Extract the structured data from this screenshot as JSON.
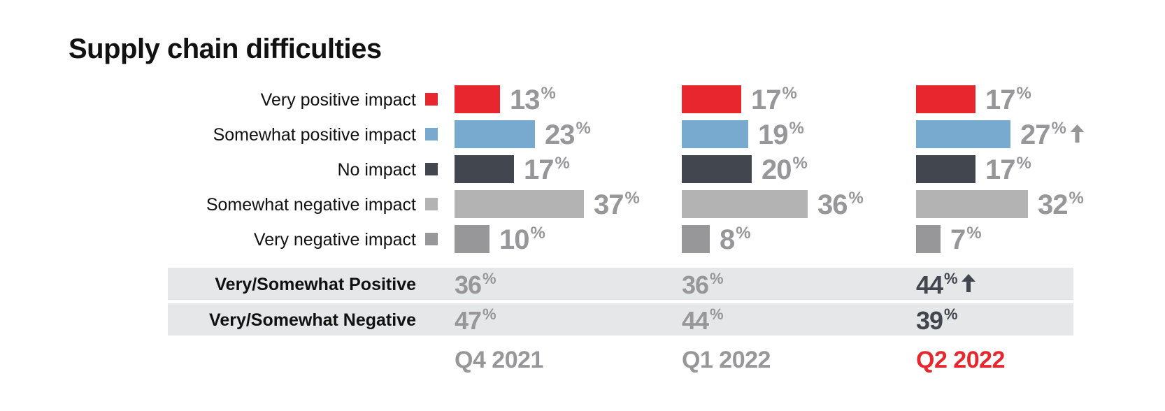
{
  "title": "Supply chain difficulties",
  "chart_data": {
    "type": "bar",
    "title": "Supply chain difficulties",
    "categories": [
      "Very positive impact",
      "Somewhat positive impact",
      "No impact",
      "Somewhat negative impact",
      "Very negative impact"
    ],
    "series": [
      {
        "name": "Q4 2021",
        "values": [
          13,
          23,
          17,
          37,
          10
        ]
      },
      {
        "name": "Q1 2022",
        "values": [
          17,
          19,
          20,
          36,
          8
        ]
      },
      {
        "name": "Q2 2022",
        "values": [
          17,
          27,
          17,
          32,
          7
        ]
      }
    ],
    "value_suffix": "%",
    "category_colors": [
      "#e8262e",
      "#78a9cf",
      "#42464f",
      "#b3b3b3",
      "#97979a"
    ],
    "value_label_color": "#97979a",
    "highlight_color": "#e8262e",
    "up_arrows": [
      {
        "period": "Q2 2022",
        "category": "Somewhat positive impact"
      }
    ],
    "summary": {
      "rows": [
        {
          "label": "Very/Somewhat Positive",
          "values": [
            36,
            36,
            44
          ],
          "up_arrow_period": "Q2 2022"
        },
        {
          "label": "Very/Somewhat Negative",
          "values": [
            47,
            44,
            39
          ]
        }
      ],
      "row_background": "#e6e7e8",
      "muted_color": "#97979a",
      "current_color": "#42464f"
    },
    "highlighted_period": "Q2 2022"
  }
}
